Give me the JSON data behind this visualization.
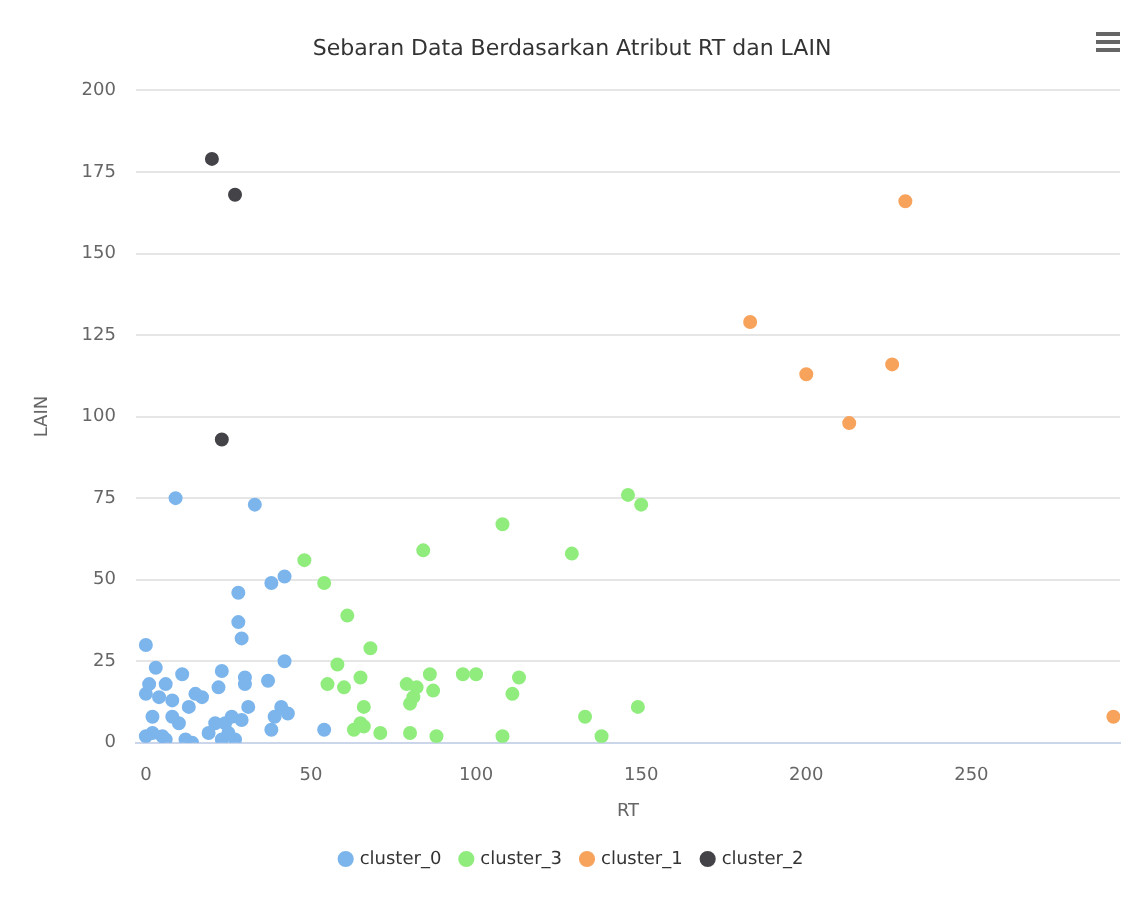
{
  "chart_data": {
    "type": "scatter",
    "title": "Sebaran Data Berdasarkan Atribut RT dan LAIN",
    "xlabel": "RT",
    "ylabel": "LAIN",
    "xlim": [
      -3,
      295
    ],
    "xticks": [
      0,
      50,
      100,
      150,
      200,
      250
    ],
    "ylim": [
      0,
      200
    ],
    "yticks": [
      0,
      25,
      50,
      75,
      100,
      125,
      150,
      175,
      200
    ],
    "grid": "y",
    "legend": "bottom",
    "marker": "circle",
    "series": [
      {
        "name": "cluster_0",
        "color": "#7cb5ec",
        "x": [
          9,
          33,
          42,
          38,
          28,
          28,
          29,
          0,
          42,
          3,
          11,
          23,
          30,
          37,
          1,
          6,
          22,
          30,
          0,
          4,
          15,
          17,
          8,
          13,
          31,
          41,
          43,
          39,
          2,
          8,
          10,
          26,
          24,
          21,
          29,
          38,
          54,
          2,
          5,
          6,
          12,
          14,
          19,
          23,
          25,
          27,
          0
        ],
        "values": [
          75,
          73,
          51,
          49,
          46,
          37,
          32,
          30,
          25,
          23,
          21,
          22,
          20,
          19,
          18,
          18,
          17,
          18,
          15,
          14,
          15,
          14,
          13,
          11,
          11,
          11,
          9,
          8,
          8,
          8,
          6,
          8,
          6,
          6,
          7,
          4,
          4,
          3,
          2,
          1,
          1,
          0,
          3,
          1,
          3,
          1,
          2
        ]
      },
      {
        "name": "cluster_3",
        "color": "#90ed7d",
        "x": [
          48,
          84,
          129,
          54,
          61,
          68,
          58,
          65,
          55,
          60,
          79,
          82,
          81,
          80,
          86,
          87,
          96,
          100,
          113,
          111,
          66,
          65,
          63,
          66,
          71,
          80,
          88,
          108,
          133,
          138,
          149,
          108,
          146,
          150
        ],
        "values": [
          56,
          59,
          58,
          49,
          39,
          29,
          24,
          20,
          18,
          17,
          18,
          17,
          14,
          12,
          21,
          16,
          21,
          21,
          20,
          15,
          11,
          6,
          4,
          5,
          3,
          3,
          2,
          2,
          8,
          2,
          11,
          67,
          76,
          73
        ]
      },
      {
        "name": "cluster_1",
        "color": "#f7a35c",
        "x": [
          230,
          183,
          200,
          226,
          213,
          293
        ],
        "values": [
          166,
          129,
          113,
          116,
          98,
          8
        ]
      },
      {
        "name": "cluster_2",
        "color": "#434348",
        "x": [
          20,
          27,
          23
        ],
        "values": [
          179,
          168,
          93
        ]
      }
    ]
  }
}
